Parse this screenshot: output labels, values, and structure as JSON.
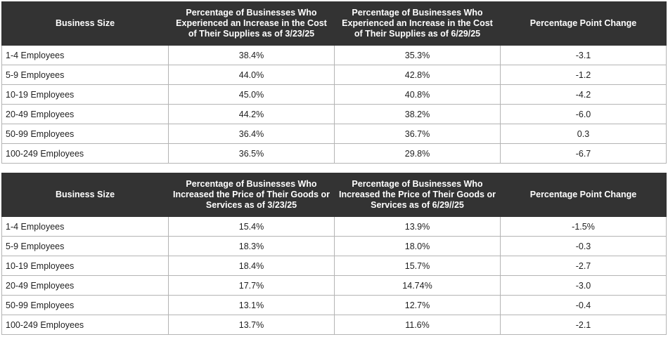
{
  "table1": {
    "headers": [
      "Business Size",
      "Percentage of Businesses Who Experienced an Increase in the Cost of Their Supplies as of 3/23/25",
      "Percentage of Businesses Who Experienced an Increase in the Cost of Their Supplies as of 6/29/25",
      "Percentage Point Change"
    ],
    "rows": [
      [
        "1-4 Employees",
        "38.4%",
        "35.3%",
        "-3.1"
      ],
      [
        "5-9 Employees",
        "44.0%",
        "42.8%",
        "-1.2"
      ],
      [
        "10-19 Employees",
        "45.0%",
        "40.8%",
        "-4.2"
      ],
      [
        "20-49 Employees",
        "44.2%",
        "38.2%",
        "-6.0"
      ],
      [
        "50-99 Employees",
        "36.4%",
        "36.7%",
        "0.3"
      ],
      [
        "100-249 Employees",
        "36.5%",
        "29.8%",
        "-6.7"
      ]
    ]
  },
  "table2": {
    "headers": [
      "Business Size",
      "Percentage of Businesses Who Increased the Price of Their Goods or Services as of 3/23/25",
      "Percentage of Businesses Who Increased the Price of Their Goods or Services as of 6/29//25",
      "Percentage Point Change"
    ],
    "rows": [
      [
        "1-4 Employees",
        "15.4%",
        "13.9%",
        "-1.5%"
      ],
      [
        "5-9 Employees",
        "18.3%",
        "18.0%",
        "-0.3"
      ],
      [
        "10-19 Employees",
        "18.4%",
        "15.7%",
        "-2.7"
      ],
      [
        "20-49 Employees",
        "17.7%",
        "14.74%",
        "-3.0"
      ],
      [
        "50-99 Employees",
        "13.1%",
        "12.7%",
        "-0.4"
      ],
      [
        "100-249 Employees",
        "13.7%",
        "11.6%",
        "-2.1"
      ]
    ]
  }
}
